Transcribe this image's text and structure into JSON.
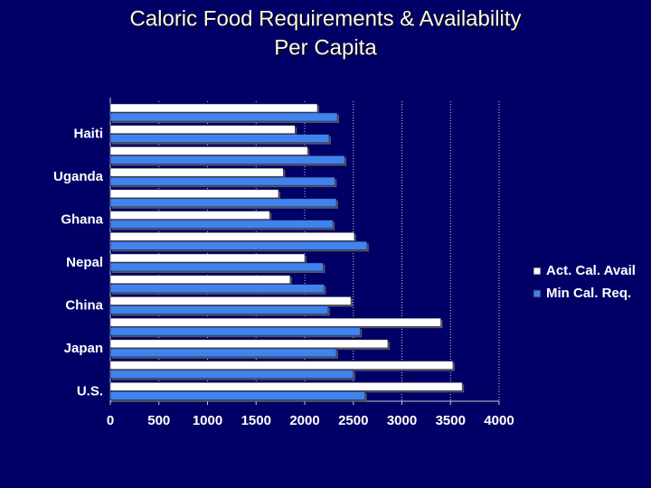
{
  "chart_data": {
    "type": "hbar",
    "title": [
      "Caloric Food Requirements & Availability",
      "Per Capita"
    ],
    "categories": [
      null,
      "Haiti",
      null,
      "Uganda",
      null,
      "Ghana",
      null,
      "Nepal",
      null,
      "China",
      null,
      "Japan",
      null,
      "U.S."
    ],
    "series": [
      {
        "name": "Act. Cal. Avail",
        "color": "#ffffff",
        "values": [
          2130,
          1900,
          2030,
          1780,
          1730,
          1640,
          2510,
          2000,
          1850,
          2475,
          3400,
          2855,
          3525,
          3620
        ]
      },
      {
        "name": "Min Cal. Req.",
        "color": "#3f83ee",
        "values": [
          2335,
          2250,
          2410,
          2310,
          2325,
          2290,
          2640,
          2190,
          2200,
          2240,
          2570,
          2325,
          2500,
          2620
        ]
      }
    ],
    "xlim": [
      0,
      4000
    ],
    "xticks": [
      0,
      500,
      1000,
      1500,
      2000,
      2500,
      3000,
      3500,
      4000
    ],
    "grid": true,
    "legend": "right"
  }
}
